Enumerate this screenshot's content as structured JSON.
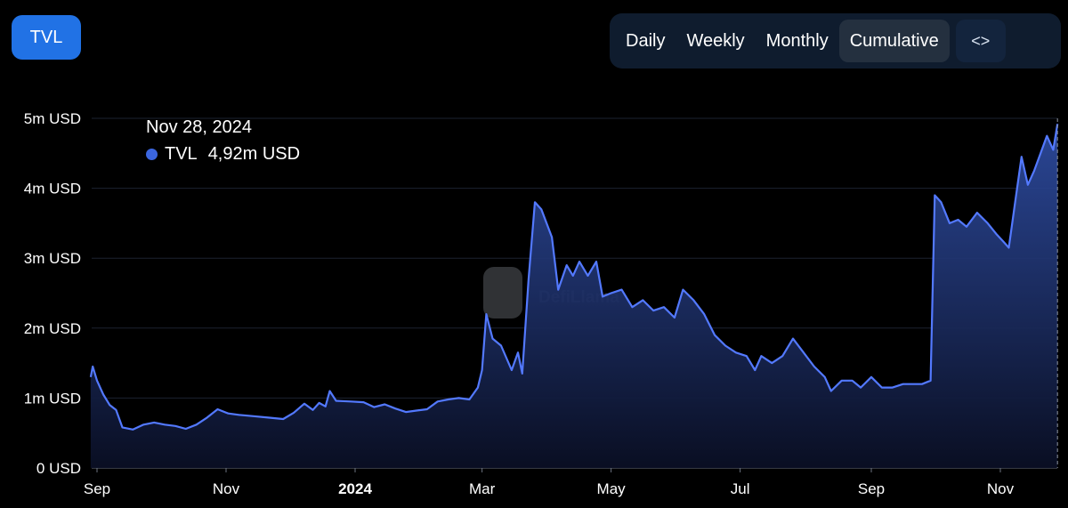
{
  "metric_button": {
    "label": "TVL"
  },
  "toggles": [
    {
      "label": "Daily",
      "active": false
    },
    {
      "label": "Weekly",
      "active": false
    },
    {
      "label": "Monthly",
      "active": false
    },
    {
      "label": "Cumulative",
      "active": true
    }
  ],
  "embed_button": {
    "icon": "code-brackets-icon",
    "glyph": "<>"
  },
  "tooltip": {
    "date": "Nov 28, 2024",
    "series": "TVL",
    "value": "4,92m USD"
  },
  "watermark": "DefiLlama",
  "colors": {
    "line": "#5379ff",
    "fill_top": "#2f4ea6",
    "fill_bottom": "#0a0f24",
    "accent": "#2172e5"
  },
  "chart_data": {
    "type": "area",
    "title": "",
    "xlabel": "",
    "ylabel": "",
    "ylim": [
      0,
      5000000
    ],
    "xlim": [
      "2023-09-01",
      "2024-11-28"
    ],
    "grid": true,
    "y_ticks": [
      {
        "value": 0,
        "label": "0 USD"
      },
      {
        "value": 1000000,
        "label": "1m USD"
      },
      {
        "value": 2000000,
        "label": "2m USD"
      },
      {
        "value": 3000000,
        "label": "3m USD"
      },
      {
        "value": 4000000,
        "label": "4m USD"
      },
      {
        "value": 5000000,
        "label": "5m USD"
      }
    ],
    "x_ticks": [
      {
        "date": "2023-09-01",
        "label": "Sep",
        "bold": false
      },
      {
        "date": "2023-11-01",
        "label": "Nov",
        "bold": false
      },
      {
        "date": "2024-01-01",
        "label": "2024",
        "bold": true
      },
      {
        "date": "2024-03-01",
        "label": "Mar",
        "bold": false
      },
      {
        "date": "2024-05-01",
        "label": "May",
        "bold": false
      },
      {
        "date": "2024-07-01",
        "label": "Jul",
        "bold": false
      },
      {
        "date": "2024-09-01",
        "label": "Sep",
        "bold": false
      },
      {
        "date": "2024-11-01",
        "label": "Nov",
        "bold": false
      }
    ],
    "series": [
      {
        "name": "TVL",
        "points": [
          [
            "2023-08-29",
            1300000
          ],
          [
            "2023-08-30",
            1450000
          ],
          [
            "2023-09-01",
            1250000
          ],
          [
            "2023-09-04",
            1050000
          ],
          [
            "2023-09-07",
            900000
          ],
          [
            "2023-09-10",
            830000
          ],
          [
            "2023-09-13",
            580000
          ],
          [
            "2023-09-18",
            550000
          ],
          [
            "2023-09-23",
            620000
          ],
          [
            "2023-09-28",
            650000
          ],
          [
            "2023-10-03",
            620000
          ],
          [
            "2023-10-08",
            600000
          ],
          [
            "2023-10-13",
            560000
          ],
          [
            "2023-10-18",
            620000
          ],
          [
            "2023-10-23",
            720000
          ],
          [
            "2023-10-28",
            840000
          ],
          [
            "2023-11-02",
            780000
          ],
          [
            "2023-11-07",
            760000
          ],
          [
            "2023-11-14",
            740000
          ],
          [
            "2023-11-21",
            720000
          ],
          [
            "2023-11-28",
            700000
          ],
          [
            "2023-12-03",
            790000
          ],
          [
            "2023-12-08",
            920000
          ],
          [
            "2023-12-12",
            830000
          ],
          [
            "2023-12-15",
            930000
          ],
          [
            "2023-12-18",
            880000
          ],
          [
            "2023-12-20",
            1100000
          ],
          [
            "2023-12-23",
            960000
          ],
          [
            "2023-12-30",
            950000
          ],
          [
            "2024-01-05",
            940000
          ],
          [
            "2024-01-10",
            870000
          ],
          [
            "2024-01-15",
            910000
          ],
          [
            "2024-01-20",
            850000
          ],
          [
            "2024-01-25",
            800000
          ],
          [
            "2024-01-30",
            820000
          ],
          [
            "2024-02-04",
            840000
          ],
          [
            "2024-02-09",
            950000
          ],
          [
            "2024-02-14",
            980000
          ],
          [
            "2024-02-19",
            1000000
          ],
          [
            "2024-02-24",
            980000
          ],
          [
            "2024-02-28",
            1150000
          ],
          [
            "2024-03-01",
            1400000
          ],
          [
            "2024-03-03",
            2200000
          ],
          [
            "2024-03-06",
            1850000
          ],
          [
            "2024-03-10",
            1750000
          ],
          [
            "2024-03-15",
            1400000
          ],
          [
            "2024-03-18",
            1650000
          ],
          [
            "2024-03-20",
            1350000
          ],
          [
            "2024-03-23",
            2700000
          ],
          [
            "2024-03-26",
            3800000
          ],
          [
            "2024-03-29",
            3700000
          ],
          [
            "2024-04-03",
            3300000
          ],
          [
            "2024-04-06",
            2550000
          ],
          [
            "2024-04-10",
            2900000
          ],
          [
            "2024-04-13",
            2750000
          ],
          [
            "2024-04-16",
            2950000
          ],
          [
            "2024-04-20",
            2750000
          ],
          [
            "2024-04-24",
            2950000
          ],
          [
            "2024-04-27",
            2450000
          ],
          [
            "2024-05-01",
            2500000
          ],
          [
            "2024-05-06",
            2550000
          ],
          [
            "2024-05-11",
            2300000
          ],
          [
            "2024-05-16",
            2400000
          ],
          [
            "2024-05-21",
            2250000
          ],
          [
            "2024-05-26",
            2300000
          ],
          [
            "2024-05-31",
            2150000
          ],
          [
            "2024-06-04",
            2550000
          ],
          [
            "2024-06-09",
            2400000
          ],
          [
            "2024-06-14",
            2200000
          ],
          [
            "2024-06-19",
            1900000
          ],
          [
            "2024-06-24",
            1750000
          ],
          [
            "2024-06-29",
            1650000
          ],
          [
            "2024-07-04",
            1600000
          ],
          [
            "2024-07-08",
            1400000
          ],
          [
            "2024-07-11",
            1600000
          ],
          [
            "2024-07-16",
            1500000
          ],
          [
            "2024-07-21",
            1600000
          ],
          [
            "2024-07-26",
            1850000
          ],
          [
            "2024-07-31",
            1650000
          ],
          [
            "2024-08-05",
            1450000
          ],
          [
            "2024-08-10",
            1300000
          ],
          [
            "2024-08-13",
            1100000
          ],
          [
            "2024-08-18",
            1250000
          ],
          [
            "2024-08-23",
            1250000
          ],
          [
            "2024-08-27",
            1150000
          ],
          [
            "2024-09-01",
            1300000
          ],
          [
            "2024-09-06",
            1150000
          ],
          [
            "2024-09-11",
            1150000
          ],
          [
            "2024-09-16",
            1200000
          ],
          [
            "2024-09-21",
            1200000
          ],
          [
            "2024-09-25",
            1200000
          ],
          [
            "2024-09-29",
            1250000
          ],
          [
            "2024-10-01",
            3900000
          ],
          [
            "2024-10-04",
            3800000
          ],
          [
            "2024-10-08",
            3500000
          ],
          [
            "2024-10-12",
            3550000
          ],
          [
            "2024-10-16",
            3450000
          ],
          [
            "2024-10-21",
            3650000
          ],
          [
            "2024-10-26",
            3500000
          ],
          [
            "2024-10-30",
            3350000
          ],
          [
            "2024-11-02",
            3250000
          ],
          [
            "2024-11-05",
            3150000
          ],
          [
            "2024-11-08",
            3800000
          ],
          [
            "2024-11-11",
            4450000
          ],
          [
            "2024-11-14",
            4050000
          ],
          [
            "2024-11-17",
            4250000
          ],
          [
            "2024-11-20",
            4500000
          ],
          [
            "2024-11-23",
            4750000
          ],
          [
            "2024-11-26",
            4550000
          ],
          [
            "2024-11-28",
            4920000
          ]
        ]
      }
    ]
  }
}
